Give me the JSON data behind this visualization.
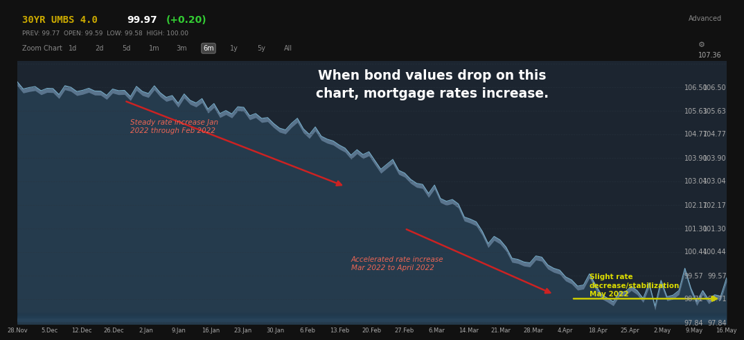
{
  "title_bar": "30YR UMBS 4.0",
  "price": "99.97",
  "change": "(+0.20)",
  "prev_text": "PREV: 99.77  OPEN: 99.59  LOW: 99.58  HIGH: 100.00",
  "annotation_main": "When bond values drop on this\nchart, mortgage rates increase.",
  "annotation_1": "Steady rate increase Jan\n2022 through Feb 2022",
  "annotation_2": "Accelerated rate increase\nMar 2022 to April 2022",
  "annotation_3": "Slight rate\ndecrease/stabilization\nMay 2022",
  "x_labels": [
    "28.Nov",
    "5.Dec",
    "12.Dec",
    "26.Dec",
    "2.Jan",
    "9.Jan",
    "16.Jan",
    "23.Jan",
    "30.Jan",
    "6.Feb",
    "13.Feb",
    "20.Feb",
    "27.Feb",
    "6.Mar",
    "14.Mar",
    "21.Mar",
    "28.Mar",
    "4.Apr",
    "18.Apr",
    "25.Apr",
    "2.May",
    "9.May",
    "16.May"
  ],
  "y_ticks": [
    107.36,
    106.5,
    105.63,
    104.77,
    103.9,
    103.04,
    102.17,
    101.3,
    100.44,
    99.57,
    98.71,
    97.84
  ],
  "y_min": 97.84,
  "y_max": 107.36,
  "bg_dark": "#111111",
  "bg_chart": "#1c2530",
  "header_bg": "#111111",
  "toolbar_bg": "#1a1a1a",
  "line_color": "#7ab0cc",
  "fill_color_top": "#4a7a9f",
  "fill_color_bottom": "#0d1820",
  "grid_color": "#2a3540",
  "axis_label_color": "#aaaaaa",
  "red_arrow_color": "#cc2222",
  "yellow_arrow_color": "#cccc00",
  "annotation_red_color": "#ee6655",
  "annotation_yellow_color": "#dddd00",
  "buttons": [
    "Zoom Chart",
    "1d",
    "2d",
    "5d",
    "1m",
    "3m",
    "6m",
    "1y",
    "5y",
    "All"
  ],
  "active_button": "6m"
}
